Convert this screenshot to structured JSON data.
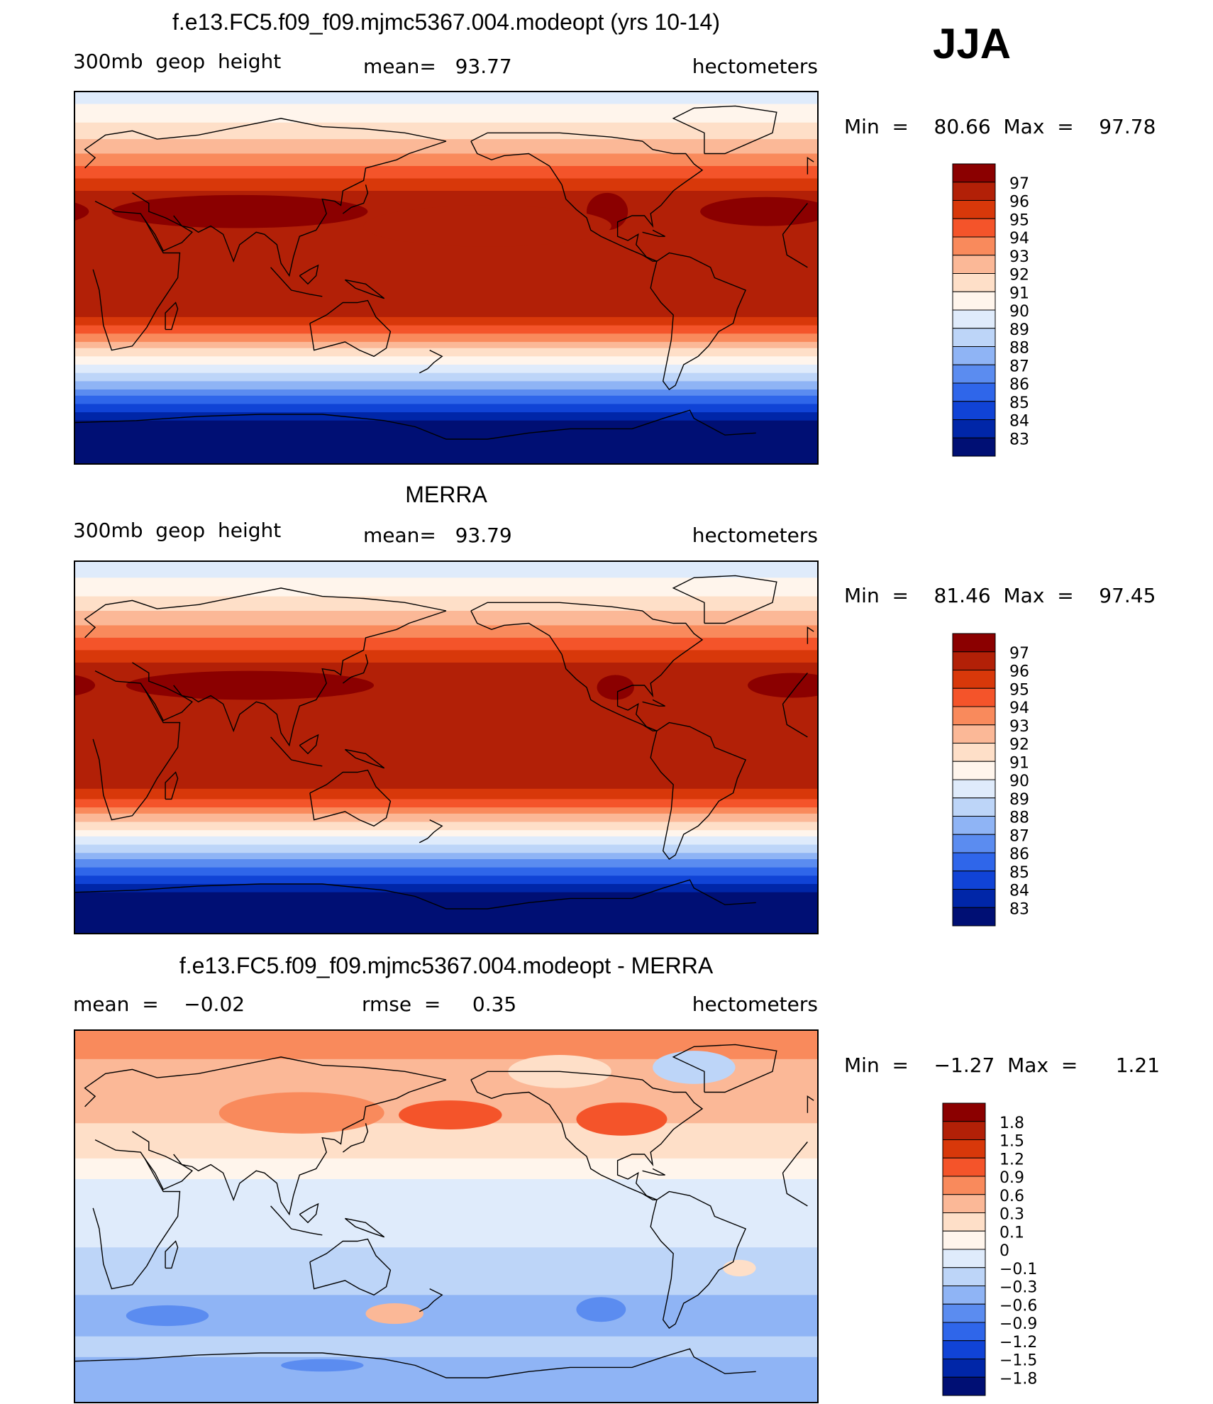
{
  "season": "JJA",
  "panels": [
    {
      "title": "f.e13.FC5.f09_f09.mjmc5367.004.modeopt (yrs 10-14)",
      "left_label": "300mb  geop  height",
      "center_label": "mean=   93.77",
      "units": "hectometers",
      "minmax": "Min  =    80.66  Max  =    97.78",
      "bands": [
        {
          "lat_top": 90,
          "lat_bot": 84,
          "level": 89
        },
        {
          "lat_top": 84,
          "lat_bot": 75,
          "level": 90
        },
        {
          "lat_top": 75,
          "lat_bot": 67,
          "level": 91
        },
        {
          "lat_top": 67,
          "lat_bot": 60,
          "level": 92
        },
        {
          "lat_top": 60,
          "lat_bot": 54,
          "level": 93
        },
        {
          "lat_top": 54,
          "lat_bot": 48,
          "level": 94
        },
        {
          "lat_top": 48,
          "lat_bot": 42,
          "level": 95
        },
        {
          "lat_top": 42,
          "lat_bot": 38,
          "level": 96
        },
        {
          "lat_top": 38,
          "lat_bot": -19,
          "level": 96
        },
        {
          "lat_top": -19,
          "lat_bot": -23,
          "level": 95
        },
        {
          "lat_top": -23,
          "lat_bot": -27,
          "level": 94
        },
        {
          "lat_top": -27,
          "lat_bot": -31,
          "level": 93
        },
        {
          "lat_top": -31,
          "lat_bot": -34,
          "level": 92
        },
        {
          "lat_top": -34,
          "lat_bot": -38,
          "level": 91
        },
        {
          "lat_top": -38,
          "lat_bot": -42,
          "level": 90
        },
        {
          "lat_top": -42,
          "lat_bot": -46,
          "level": 89
        },
        {
          "lat_top": -46,
          "lat_bot": -50,
          "level": 88
        },
        {
          "lat_top": -50,
          "lat_bot": -54,
          "level": 87
        },
        {
          "lat_top": -54,
          "lat_bot": -57,
          "level": 86
        },
        {
          "lat_top": -57,
          "lat_bot": -61,
          "level": 85
        },
        {
          "lat_top": -61,
          "lat_bot": -65,
          "level": 84
        },
        {
          "lat_top": -65,
          "lat_bot": -69,
          "level": 83
        },
        {
          "lat_top": -69,
          "lat_bot": -90,
          "level": 82
        }
      ],
      "blobs": [
        {
          "lon": 80,
          "lat": 32,
          "rlon": 62,
          "rlat": 8,
          "level": 97
        },
        {
          "lon": 258,
          "lat": 32,
          "rlon": 10,
          "rlat": 9,
          "level": 97
        },
        {
          "lon": 335,
          "lat": 32,
          "rlon": 32,
          "rlat": 7,
          "level": 97
        },
        {
          "lon": 200,
          "lat": 25,
          "rlon": 60,
          "rlat": 10,
          "level": 96
        }
      ]
    },
    {
      "title": "MERRA",
      "left_label": "300mb  geop  height",
      "center_label": "mean=   93.79",
      "units": "hectometers",
      "minmax": "Min  =    81.46  Max  =    97.45",
      "bands": [
        {
          "lat_top": 90,
          "lat_bot": 82,
          "level": 89
        },
        {
          "lat_top": 82,
          "lat_bot": 73,
          "level": 90
        },
        {
          "lat_top": 73,
          "lat_bot": 66,
          "level": 91
        },
        {
          "lat_top": 66,
          "lat_bot": 59,
          "level": 92
        },
        {
          "lat_top": 59,
          "lat_bot": 53,
          "level": 93
        },
        {
          "lat_top": 53,
          "lat_bot": 47,
          "level": 94
        },
        {
          "lat_top": 47,
          "lat_bot": 41,
          "level": 95
        },
        {
          "lat_top": 41,
          "lat_bot": -20,
          "level": 96
        },
        {
          "lat_top": -20,
          "lat_bot": -25,
          "level": 95
        },
        {
          "lat_top": -25,
          "lat_bot": -29,
          "level": 94
        },
        {
          "lat_top": -29,
          "lat_bot": -32,
          "level": 93
        },
        {
          "lat_top": -32,
          "lat_bot": -36,
          "level": 92
        },
        {
          "lat_top": -36,
          "lat_bot": -40,
          "level": 91
        },
        {
          "lat_top": -40,
          "lat_bot": -43,
          "level": 90
        },
        {
          "lat_top": -43,
          "lat_bot": -47,
          "level": 89
        },
        {
          "lat_top": -47,
          "lat_bot": -51,
          "level": 88
        },
        {
          "lat_top": -51,
          "lat_bot": -54,
          "level": 87
        },
        {
          "lat_top": -54,
          "lat_bot": -58,
          "level": 86
        },
        {
          "lat_top": -58,
          "lat_bot": -62,
          "level": 85
        },
        {
          "lat_top": -62,
          "lat_bot": -66,
          "level": 84
        },
        {
          "lat_top": -66,
          "lat_bot": -70,
          "level": 83
        },
        {
          "lat_top": -70,
          "lat_bot": -90,
          "level": 82
        }
      ],
      "blobs": [
        {
          "lon": 85,
          "lat": 30,
          "rlon": 60,
          "rlat": 7,
          "level": 97
        },
        {
          "lon": 262,
          "lat": 29,
          "rlon": 9,
          "rlat": 6,
          "level": 97
        },
        {
          "lon": 348,
          "lat": 30,
          "rlon": 22,
          "rlat": 6,
          "level": 97
        }
      ]
    },
    {
      "title": "f.e13.FC5.f09_f09.mjmc5367.004.modeopt - MERRA",
      "left_label": "mean  =    −0.02",
      "center_label": "rmse  =     0.35",
      "units": "hectometers",
      "minmax": "Min  =    −1.27  Max  =      1.21",
      "bands": [
        {
          "lat_top": 90,
          "lat_bot": 76,
          "level": 0.6
        },
        {
          "lat_top": 76,
          "lat_bot": 45,
          "level": 0.3
        },
        {
          "lat_top": 45,
          "lat_bot": 28,
          "level": 0.1
        },
        {
          "lat_top": 28,
          "lat_bot": 18,
          "level": 0
        },
        {
          "lat_top": 18,
          "lat_bot": -15,
          "level": -0.1
        },
        {
          "lat_top": -15,
          "lat_bot": -38,
          "level": -0.3
        },
        {
          "lat_top": -38,
          "lat_bot": -58,
          "level": -0.6
        },
        {
          "lat_top": -58,
          "lat_bot": -68,
          "level": -0.3
        },
        {
          "lat_top": -68,
          "lat_bot": -90,
          "level": -0.6
        }
      ],
      "blobs": [
        {
          "lon": 110,
          "lat": 50,
          "rlon": 40,
          "rlat": 10,
          "level": 0.6
        },
        {
          "lon": 182,
          "lat": 49,
          "rlon": 25,
          "rlat": 7,
          "level": 0.9
        },
        {
          "lon": 265,
          "lat": 47,
          "rlon": 22,
          "rlat": 8,
          "level": 0.9
        },
        {
          "lon": 235,
          "lat": 70,
          "rlon": 25,
          "rlat": 8,
          "level": 0.1
        },
        {
          "lon": 300,
          "lat": 72,
          "rlon": 20,
          "rlat": 8,
          "level": -0.3
        },
        {
          "lon": 45,
          "lat": -48,
          "rlon": 20,
          "rlat": 5,
          "level": -0.9
        },
        {
          "lon": 155,
          "lat": -47,
          "rlon": 14,
          "rlat": 5,
          "level": 0.3
        },
        {
          "lon": 255,
          "lat": -45,
          "rlon": 12,
          "rlat": 6,
          "level": -0.9
        },
        {
          "lon": 322,
          "lat": -25,
          "rlon": 8,
          "rlat": 4,
          "level": 0.1
        },
        {
          "lon": 120,
          "lat": -72,
          "rlon": 20,
          "rlat": 3,
          "level": -0.9
        }
      ]
    }
  ],
  "colorbars": [
    {
      "labels": [
        "97",
        "96",
        "95",
        "94",
        "93",
        "92",
        "91",
        "90",
        "89",
        "88",
        "87",
        "86",
        "85",
        "84",
        "83"
      ],
      "colors": [
        "#8b0000",
        "#b22007",
        "#d8380a",
        "#f4542a",
        "#f98a5c",
        "#fbb897",
        "#fedfc8",
        "#fff5ec",
        "#dfebfb",
        "#bdd5f8",
        "#8fb4f5",
        "#5b8cf0",
        "#2f66ea",
        "#1043d6",
        "#0026a8",
        "#000f74"
      ]
    },
    {
      "labels": [
        "97",
        "96",
        "95",
        "94",
        "93",
        "92",
        "91",
        "90",
        "89",
        "88",
        "87",
        "86",
        "85",
        "84",
        "83"
      ],
      "colors": [
        "#8b0000",
        "#b22007",
        "#d8380a",
        "#f4542a",
        "#f98a5c",
        "#fbb897",
        "#fedfc8",
        "#fff5ec",
        "#dfebfb",
        "#bdd5f8",
        "#8fb4f5",
        "#5b8cf0",
        "#2f66ea",
        "#1043d6",
        "#0026a8",
        "#000f74"
      ]
    },
    {
      "labels": [
        "1.8",
        "1.5",
        "1.2",
        "0.9",
        "0.6",
        "0.3",
        "0.1",
        "0",
        "−0.1",
        "−0.3",
        "−0.6",
        "−0.9",
        "−1.2",
        "−1.5",
        "−1.8"
      ],
      "colors": [
        "#8b0000",
        "#b22007",
        "#d8380a",
        "#f4542a",
        "#f98a5c",
        "#fbb897",
        "#fedfc8",
        "#fff5ec",
        "#dfebfb",
        "#bdd5f8",
        "#8fb4f5",
        "#5b8cf0",
        "#2f66ea",
        "#1043d6",
        "#0026a8",
        "#000f74"
      ]
    }
  ],
  "chart_data": [
    {
      "type": "heatmap",
      "title": "f.e13.FC5.f09_f09.mjmc5367.004.modeopt (yrs 10-14)",
      "subtitle": "300mb geop height",
      "season": "JJA",
      "units": "hectometers",
      "mean": 93.77,
      "min": 80.66,
      "max": 97.78,
      "contour_levels": [
        83,
        84,
        85,
        86,
        87,
        88,
        89,
        90,
        91,
        92,
        93,
        94,
        95,
        96,
        97
      ],
      "x": "longitude (0 to 360, centered on 180)",
      "y": "latitude (-90 to 90)"
    },
    {
      "type": "heatmap",
      "title": "MERRA",
      "subtitle": "300mb geop height",
      "season": "JJA",
      "units": "hectometers",
      "mean": 93.79,
      "min": 81.46,
      "max": 97.45,
      "contour_levels": [
        83,
        84,
        85,
        86,
        87,
        88,
        89,
        90,
        91,
        92,
        93,
        94,
        95,
        96,
        97
      ],
      "x": "longitude (0 to 360, centered on 180)",
      "y": "latitude (-90 to 90)"
    },
    {
      "type": "heatmap",
      "title": "f.e13.FC5.f09_f09.mjmc5367.004.modeopt - MERRA",
      "season": "JJA",
      "units": "hectometers",
      "mean": -0.02,
      "rmse": 0.35,
      "min": -1.27,
      "max": 1.21,
      "contour_levels": [
        -1.8,
        -1.5,
        -1.2,
        -0.9,
        -0.6,
        -0.3,
        -0.1,
        0,
        0.1,
        0.3,
        0.6,
        0.9,
        1.2,
        1.5,
        1.8
      ],
      "x": "longitude (0 to 360, centered on 180)",
      "y": "latitude (-90 to 90)"
    }
  ]
}
